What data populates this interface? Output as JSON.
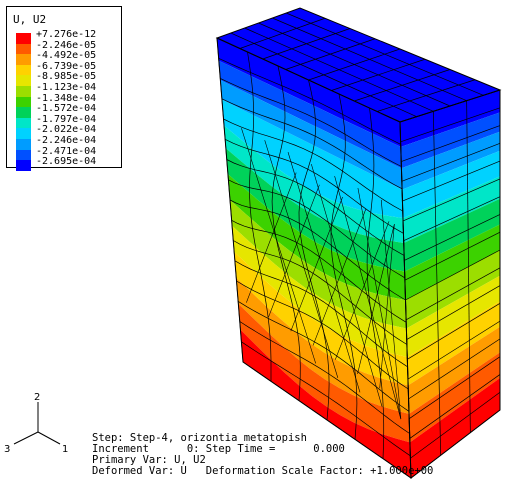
{
  "legend": {
    "title": "U, U2",
    "entries": [
      {
        "label": "+7.276e-12",
        "color": "#ff0000"
      },
      {
        "label": "-2.246e-05",
        "color": "#ff5a00"
      },
      {
        "label": "-4.492e-05",
        "color": "#ff9c00"
      },
      {
        "label": "-6.739e-05",
        "color": "#ffd200"
      },
      {
        "label": "-8.985e-05",
        "color": "#e6e600"
      },
      {
        "label": "-1.123e-04",
        "color": "#9cde00"
      },
      {
        "label": "-1.348e-04",
        "color": "#3cd200"
      },
      {
        "label": "-1.572e-04",
        "color": "#00d25a"
      },
      {
        "label": "-1.797e-04",
        "color": "#00e6c8"
      },
      {
        "label": "-2.022e-04",
        "color": "#00d2ff"
      },
      {
        "label": "-2.246e-04",
        "color": "#009cff"
      },
      {
        "label": "-2.471e-04",
        "color": "#0050ff"
      },
      {
        "label": "-2.695e-04",
        "color": "#0000ff"
      }
    ]
  },
  "status": {
    "step": "Step: Step-4, orizontia metatopish",
    "increment": "Increment      0: Step Time =      0.000",
    "primary_var": "Primary Var: U, U2",
    "deformed_var": "Deformed Var: U   Deformation Scale Factor: +1.000e+00"
  },
  "triad": {
    "axis1": "1",
    "axis2": "2",
    "axis3": "3"
  }
}
